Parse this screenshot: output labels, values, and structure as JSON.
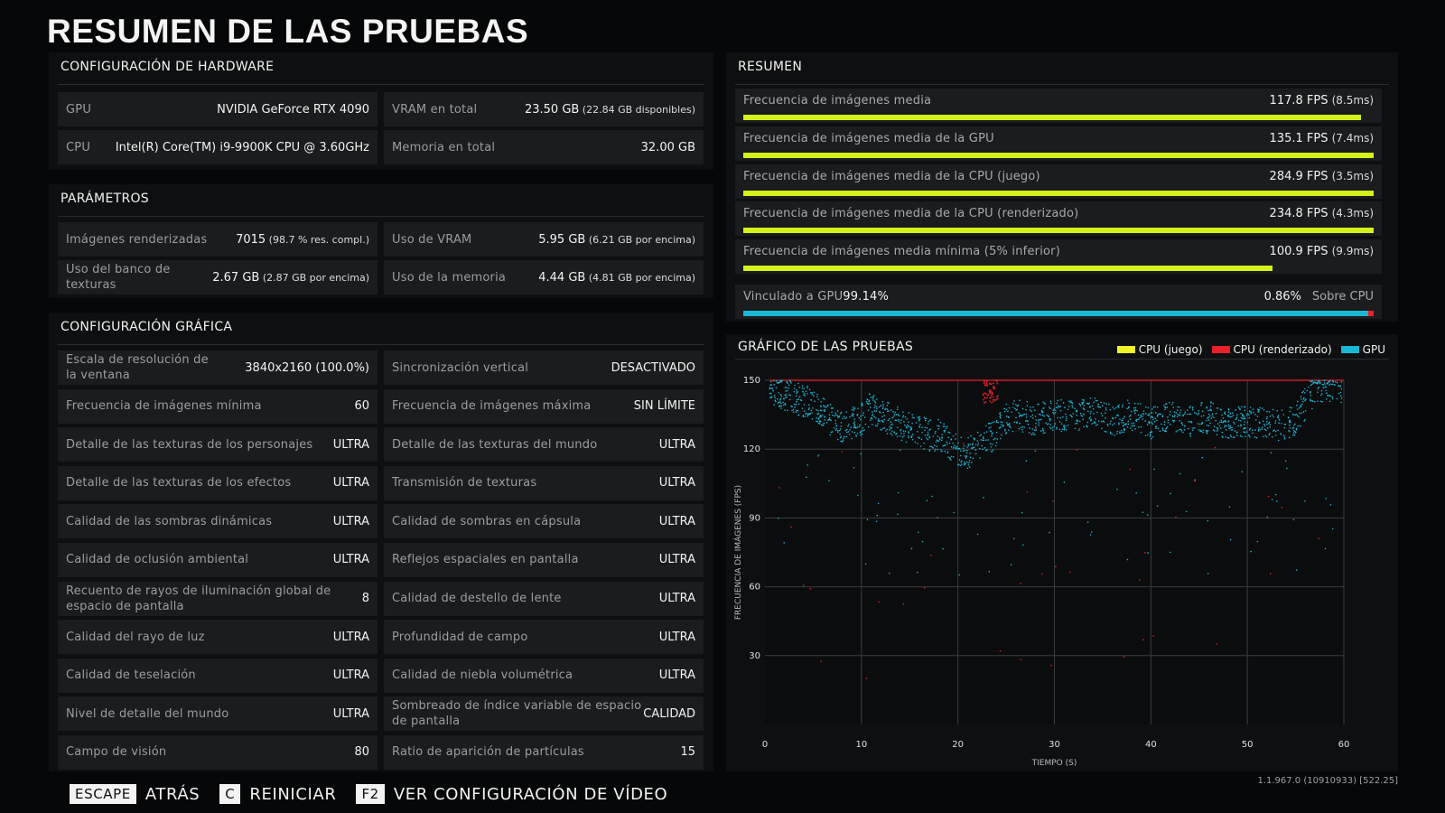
{
  "page_title": "RESUMEN DE LAS PRUEBAS",
  "hardware": {
    "title": "CONFIGURACIÓN DE HARDWARE",
    "items": [
      {
        "label": "GPU",
        "value": "NVIDIA GeForce RTX 4090",
        "sub": ""
      },
      {
        "label": "VRAM en total",
        "value": "23.50 GB",
        "sub": "(22.84 GB disponibles)"
      },
      {
        "label": "CPU",
        "value": "Intel(R) Core(TM) i9-9900K CPU @ 3.60GHz",
        "sub": ""
      },
      {
        "label": "Memoria en total",
        "value": "32.00 GB",
        "sub": ""
      }
    ]
  },
  "params": {
    "title": "PARÁMETROS",
    "items": [
      {
        "label": "Imágenes renderizadas",
        "value": "7015",
        "sub": "(98.7 % res. compl.)"
      },
      {
        "label": "Uso de VRAM",
        "value": "5.95 GB",
        "sub": "(6.21 GB por encima)"
      },
      {
        "label": "Uso del banco de texturas",
        "value": "2.67 GB",
        "sub": "(2.87 GB por encima)"
      },
      {
        "label": "Uso de la memoria",
        "value": "4.44 GB",
        "sub": "(4.81 GB por encima)"
      }
    ]
  },
  "graphics": {
    "title": "CONFIGURACIÓN GRÁFICA",
    "items": [
      {
        "label": "Escala de resolución de la ventana",
        "value": "3840x2160 (100.0%)"
      },
      {
        "label": "Sincronización vertical",
        "value": "DESACTIVADO"
      },
      {
        "label": "Frecuencia de imágenes mínima",
        "value": "60"
      },
      {
        "label": "Frecuencia de imágenes máxima",
        "value": "SIN LÍMITE"
      },
      {
        "label": "Detalle de las texturas de los personajes",
        "value": "ULTRA"
      },
      {
        "label": "Detalle de las texturas del mundo",
        "value": "ULTRA"
      },
      {
        "label": "Detalle de las texturas de los efectos",
        "value": "ULTRA"
      },
      {
        "label": "Transmisión de texturas",
        "value": "ULTRA"
      },
      {
        "label": "Calidad de las sombras dinámicas",
        "value": "ULTRA"
      },
      {
        "label": "Calidad de sombras en cápsula",
        "value": "ULTRA"
      },
      {
        "label": "Calidad de oclusión ambiental",
        "value": "ULTRA"
      },
      {
        "label": "Reflejos espaciales en pantalla",
        "value": "ULTRA"
      },
      {
        "label": "Recuento de rayos de iluminación global de espacio de pantalla",
        "value": "8"
      },
      {
        "label": "Calidad de destello de lente",
        "value": "ULTRA"
      },
      {
        "label": "Calidad del rayo de luz",
        "value": "ULTRA"
      },
      {
        "label": "Profundidad de campo",
        "value": "ULTRA"
      },
      {
        "label": "Calidad de teselación",
        "value": "ULTRA"
      },
      {
        "label": "Calidad de niebla volumétrica",
        "value": "ULTRA"
      },
      {
        "label": "Nivel de detalle del mundo",
        "value": "ULTRA"
      },
      {
        "label": "Sombreado de índice variable de espacio de pantalla",
        "value": "CALIDAD"
      },
      {
        "label": "Campo de visión",
        "value": "80"
      },
      {
        "label": "Ratio de aparición de partículas",
        "value": "15"
      }
    ]
  },
  "summary": {
    "title": "RESUMEN",
    "rows": [
      {
        "label": "Frecuencia de imágenes media",
        "value": "117.8 FPS",
        "sub": "(8.5ms)",
        "fill": 0.98
      },
      {
        "label": "Frecuencia de imágenes media de la GPU",
        "value": "135.1 FPS",
        "sub": "(7.4ms)",
        "fill": 1.0
      },
      {
        "label": "Frecuencia de imágenes media de la CPU (juego)",
        "value": "284.9 FPS",
        "sub": "(3.5ms)",
        "fill": 1.0
      },
      {
        "label": "Frecuencia de imágenes media de la CPU (renderizado)",
        "value": "234.8 FPS",
        "sub": "(4.3ms)",
        "fill": 1.0
      },
      {
        "label": "Frecuencia de imágenes media mínima (5% inferior)",
        "value": "100.9 FPS",
        "sub": "(9.9ms)",
        "fill": 0.84
      }
    ],
    "bound": {
      "gpu_label": "Vinculado a GPU",
      "gpu_pct": "99.14%",
      "cpu_pct": "0.86%",
      "cpu_label": "Sobre CPU",
      "gpu_fraction": 0.9914,
      "cpu_fraction": 0.0086
    }
  },
  "chart_section_title": "GRÁFICO DE LAS PRUEBAS",
  "chart_data": {
    "type": "scatter",
    "title": "GRÁFICO DE LAS PRUEBAS",
    "xlabel": "TIEMPO (S)",
    "ylabel": "FRECUENCIA DE IMÁGENES (FPS)",
    "xlim": [
      0,
      60
    ],
    "ylim": [
      0,
      150
    ],
    "xticks": [
      0,
      10,
      20,
      30,
      40,
      50,
      60
    ],
    "yticks": [
      30,
      60,
      90,
      120,
      150
    ],
    "grid": true,
    "legend_position": "top-right",
    "series": [
      {
        "name": "CPU (juego)",
        "color": "#f2f22a",
        "points_note": "",
        "trend": [
          [
            0,
            150
          ],
          [
            60,
            150
          ]
        ]
      },
      {
        "name": "CPU (renderizado)",
        "color": "#e8202a",
        "trend": [
          [
            0.5,
            150
          ],
          [
            16,
            150
          ],
          [
            22.5,
            150
          ],
          [
            23,
            141
          ],
          [
            24,
            140
          ],
          [
            25,
            150
          ],
          [
            60,
            150
          ]
        ]
      },
      {
        "name": "GPU",
        "color": "#1ab7d6",
        "trend": [
          [
            0.5,
            147
          ],
          [
            2,
            144
          ],
          [
            4,
            141
          ],
          [
            5,
            140
          ],
          [
            6,
            136
          ],
          [
            7,
            132
          ],
          [
            8,
            130
          ],
          [
            10,
            133
          ],
          [
            11,
            138
          ],
          [
            12,
            135
          ],
          [
            14,
            131
          ],
          [
            16,
            128
          ],
          [
            17,
            126
          ],
          [
            18,
            126
          ],
          [
            19,
            123
          ],
          [
            20,
            120
          ],
          [
            21,
            118
          ],
          [
            22,
            122
          ],
          [
            24,
            127
          ],
          [
            25,
            133
          ],
          [
            26,
            135
          ],
          [
            28,
            133
          ],
          [
            30,
            135
          ],
          [
            32,
            134
          ],
          [
            34,
            136
          ],
          [
            36,
            132
          ],
          [
            38,
            135
          ],
          [
            40,
            131
          ],
          [
            42,
            134
          ],
          [
            44,
            132
          ],
          [
            46,
            134
          ],
          [
            48,
            131
          ],
          [
            50,
            132
          ],
          [
            52,
            131
          ],
          [
            54,
            130
          ],
          [
            55,
            133
          ],
          [
            56,
            140
          ],
          [
            57,
            146
          ],
          [
            58,
            148
          ],
          [
            60,
            147
          ]
        ]
      }
    ]
  },
  "footer": {
    "items": [
      {
        "key": "ESCAPE",
        "text": "ATRÁS"
      },
      {
        "key": "C",
        "text": "REINICIAR"
      },
      {
        "key": "F2",
        "text": "VER CONFIGURACIÓN DE VÍDEO"
      }
    ],
    "version": "1.1.967.0 (10910933) [522.25]"
  }
}
